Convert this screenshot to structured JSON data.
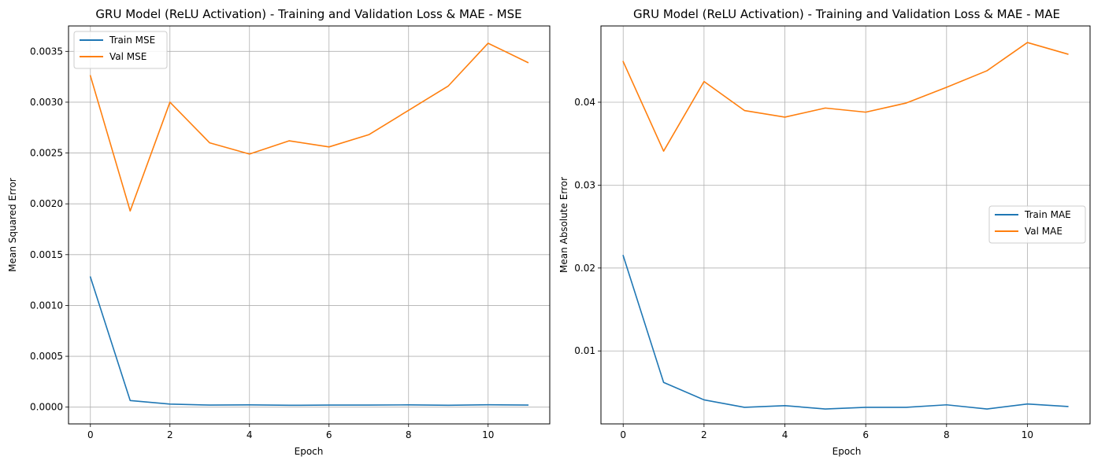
{
  "chart_data": [
    {
      "type": "line",
      "title": "GRU Model (ReLU Activation) - Training and Validation Loss & MAE - MSE",
      "xlabel": "Epoch",
      "ylabel": "Mean Squared Error",
      "x": [
        0,
        1,
        2,
        3,
        4,
        5,
        6,
        7,
        8,
        9,
        10,
        11
      ],
      "xlim": [
        -0.55,
        11.55
      ],
      "ylim": [
        -0.000165,
        0.00375
      ],
      "xticks": [
        0,
        2,
        4,
        6,
        8,
        10
      ],
      "xtick_labels": [
        "0",
        "2",
        "4",
        "6",
        "8",
        "10"
      ],
      "yticks": [
        0.0,
        0.0005,
        0.001,
        0.0015,
        0.002,
        0.0025,
        0.003,
        0.0035
      ],
      "ytick_labels": [
        "0.0000",
        "0.0005",
        "0.0010",
        "0.0015",
        "0.0020",
        "0.0025",
        "0.0030",
        "0.0035"
      ],
      "grid": true,
      "legend_position": "top-left",
      "series": [
        {
          "name": "Train MSE",
          "color": "#1f77b4",
          "values": [
            0.00128,
            6.5e-05,
            3e-05,
            2e-05,
            2.2e-05,
            1.8e-05,
            2e-05,
            2e-05,
            2.2e-05,
            1.8e-05,
            2.3e-05,
            2e-05
          ]
        },
        {
          "name": "Val MSE",
          "color": "#ff7f0e",
          "values": [
            0.00326,
            0.00193,
            0.003,
            0.0026,
            0.00249,
            0.00262,
            0.00256,
            0.00268,
            0.00292,
            0.00316,
            0.00358,
            0.00339
          ]
        }
      ]
    },
    {
      "type": "line",
      "title": "GRU Model (ReLU Activation) - Training and Validation Loss & MAE - MAE",
      "xlabel": "Epoch",
      "ylabel": "Mean Absolute Error",
      "x": [
        0,
        1,
        2,
        3,
        4,
        5,
        6,
        7,
        8,
        9,
        10,
        11
      ],
      "xlim": [
        -0.55,
        11.55
      ],
      "ylim": [
        0.0012,
        0.0492
      ],
      "xticks": [
        0,
        2,
        4,
        6,
        8,
        10
      ],
      "xtick_labels": [
        "0",
        "2",
        "4",
        "6",
        "8",
        "10"
      ],
      "yticks": [
        0.01,
        0.02,
        0.03,
        0.04
      ],
      "ytick_labels": [
        "0.01",
        "0.02",
        "0.03",
        "0.04"
      ],
      "grid": true,
      "legend_position": "center-right",
      "series": [
        {
          "name": "Train MAE",
          "color": "#1f77b4",
          "values": [
            0.0215,
            0.0062,
            0.0041,
            0.0032,
            0.0034,
            0.003,
            0.0032,
            0.0032,
            0.0035,
            0.003,
            0.0036,
            0.0033
          ]
        },
        {
          "name": "Val MAE",
          "color": "#ff7f0e",
          "values": [
            0.0449,
            0.0341,
            0.0425,
            0.039,
            0.0382,
            0.0393,
            0.0388,
            0.0399,
            0.0418,
            0.0438,
            0.0472,
            0.0458
          ]
        }
      ]
    }
  ]
}
